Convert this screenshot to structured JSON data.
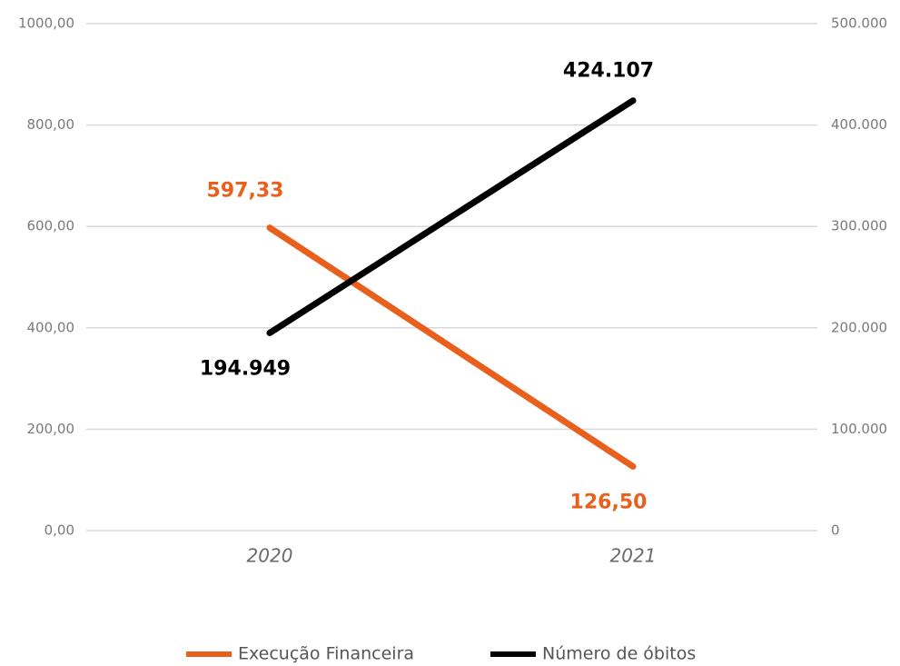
{
  "chart_data": {
    "type": "line",
    "categories": [
      "2020",
      "2021"
    ],
    "series": [
      {
        "name": "Execução Financeira",
        "color": "#e8601c",
        "values": [
          597.33,
          126.5
        ],
        "value_labels": [
          "597,33",
          "126,50"
        ]
      },
      {
        "name": "Número de óbitos",
        "color": "#000000",
        "axis": "y2",
        "values": [
          194949,
          424107
        ],
        "value_labels": [
          "194.949",
          "424.107"
        ]
      }
    ],
    "ylim": [
      0,
      1000
    ],
    "yticks": [
      {
        "value": 0,
        "label": "0,00"
      },
      {
        "value": 200,
        "label": "200,00"
      },
      {
        "value": 400,
        "label": "400,00"
      },
      {
        "value": 600,
        "label": "600,00"
      },
      {
        "value": 800,
        "label": "800,00"
      },
      {
        "value": 1000,
        "label": "1000,00"
      }
    ],
    "y2lim": [
      0,
      500000
    ],
    "y2ticks": [
      0,
      {
        "value": 100000,
        "label": "100.000"
      },
      {
        "value": 200000,
        "label": "200.000"
      },
      {
        "value": 300000,
        "label": "300.000"
      },
      {
        "value": 400000,
        "label": "400.000"
      },
      {
        "value": 500000,
        "label": "500.000"
      }
    ],
    "grid": true,
    "legend": "bottom"
  }
}
